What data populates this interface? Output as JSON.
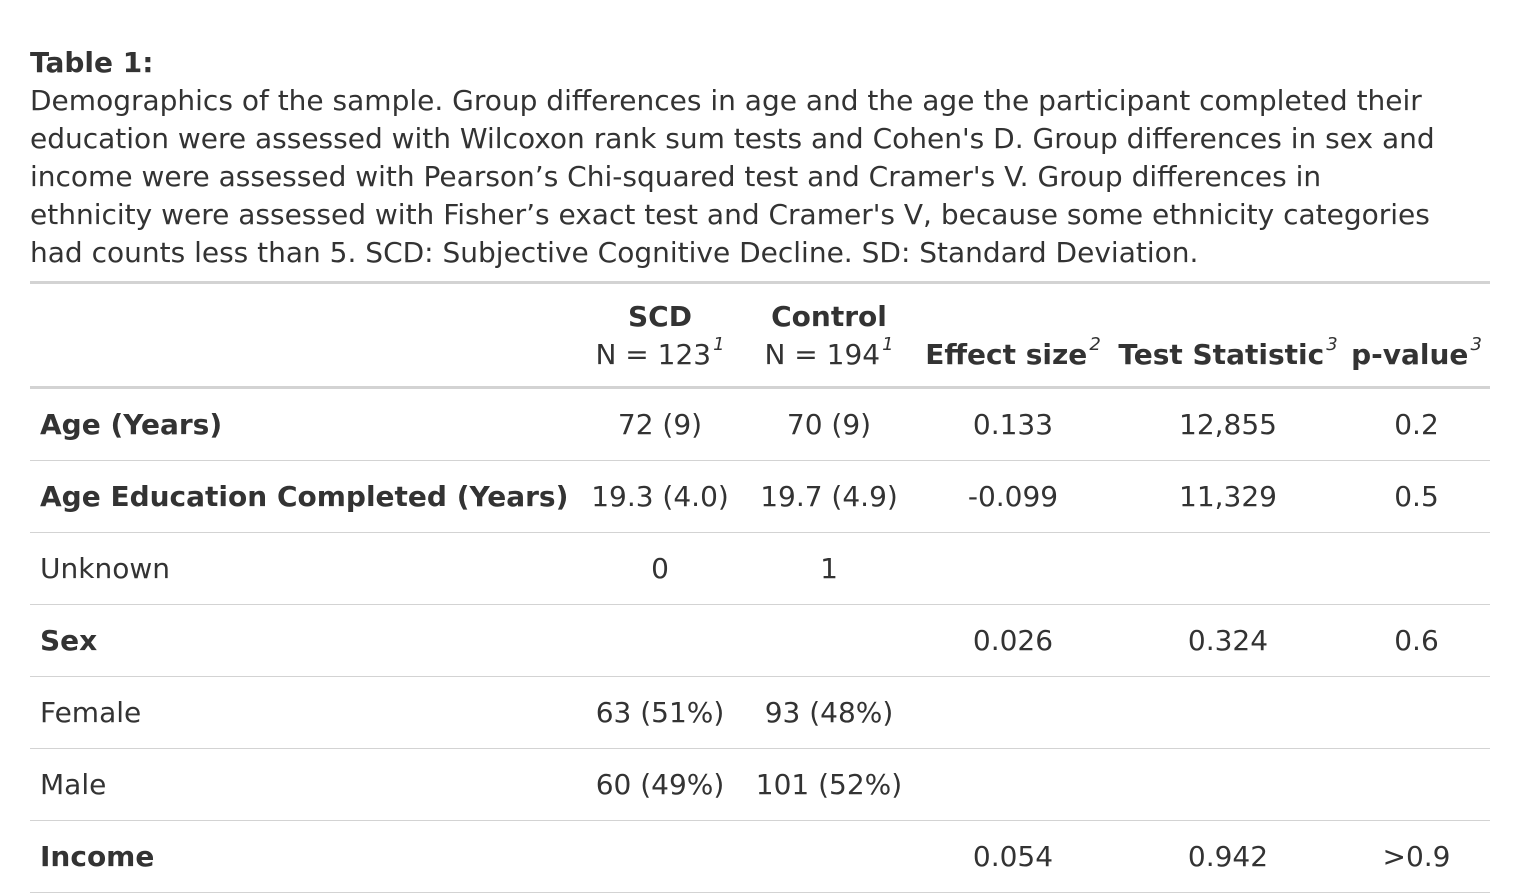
{
  "caption": {
    "title": "Table 1:",
    "text": "Demographics of the sample. Group differences in age and the age the participant completed their\neducation were assessed with Wilcoxon rank sum tests and Cohen's D. Group differences in sex and\nincome were assessed with Pearson’s Chi-squared test and Cramer's V. Group differences in\nethnicity were assessed with Fisher’s exact test and Cramer's V, because some ethnicity categories\nhad counts less than 5. SCD: Subjective Cognitive Decline. SD: Standard Deviation."
  },
  "header": {
    "scd_title": "SCD",
    "scd_n": "N = 123",
    "scd_fn": "1",
    "control_title": "Control",
    "control_n": "N = 194",
    "control_fn": "1",
    "effect_size": "Effect size",
    "effect_fn": "2",
    "test_statistic": "Test Statistic",
    "test_fn": "3",
    "p_value": "p-value",
    "p_fn": "3"
  },
  "rows": [
    {
      "label": "Age (Years)",
      "scd": "72 (9)",
      "control": "70 (9)",
      "effect": "0.133",
      "stat": "12,855",
      "p": "0.2"
    },
    {
      "label": "Age Education Completed (Years)",
      "scd": "19.3 (4.0)",
      "control": "19.7 (4.9)",
      "effect": "-0.099",
      "stat": "11,329",
      "p": "0.5"
    },
    {
      "label": "Unknown",
      "scd": "0",
      "control": "1",
      "effect": "",
      "stat": "",
      "p": ""
    },
    {
      "label": "Sex",
      "scd": "",
      "control": "",
      "effect": "0.026",
      "stat": "0.324",
      "p": "0.6"
    },
    {
      "label": "Female",
      "scd": "63 (51%)",
      "control": "93 (48%)",
      "effect": "",
      "stat": "",
      "p": ""
    },
    {
      "label": "Male",
      "scd": "60 (49%)",
      "control": "101 (52%)",
      "effect": "",
      "stat": "",
      "p": ""
    },
    {
      "label": "Income",
      "scd": "",
      "control": "",
      "effect": "0.054",
      "stat": "0.942",
      "p": ">0.9"
    }
  ]
}
